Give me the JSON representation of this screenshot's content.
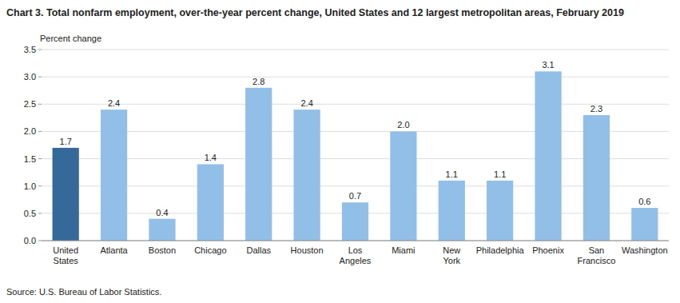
{
  "chart_data": {
    "type": "bar",
    "title": "Chart 3. Total nonfarm employment, over-the-year percent change, United States and 12 largest metropolitan areas, February 2019",
    "y_label": "Percent change",
    "source": "Source: U.S. Bureau of Labor Statistics.",
    "categories": [
      "United\nStates",
      "Atlanta",
      "Boston",
      "Chicago",
      "Dallas",
      "Houston",
      "Los\nAngeles",
      "Miami",
      "New\nYork",
      "Philadelphia",
      "Phoenix",
      "San\nFrancisco",
      "Washington"
    ],
    "values": [
      1.7,
      2.4,
      0.4,
      1.4,
      2.8,
      2.4,
      0.7,
      2.0,
      1.1,
      1.1,
      3.1,
      2.3,
      0.6
    ],
    "value_labels": [
      "1.7",
      "2.4",
      "0.4",
      "1.4",
      "2.8",
      "2.4",
      "0.7",
      "2.0",
      "1.1",
      "1.1",
      "3.1",
      "2.3",
      "0.6"
    ],
    "colors": [
      "#35699A",
      "#92BFE8",
      "#92BFE8",
      "#92BFE8",
      "#92BFE8",
      "#92BFE8",
      "#92BFE8",
      "#92BFE8",
      "#92BFE8",
      "#92BFE8",
      "#92BFE8",
      "#92BFE8",
      "#92BFE8"
    ],
    "ylim": [
      0,
      3.5
    ],
    "yticks": [
      {
        "value": 0,
        "label": "0.0"
      },
      0.5,
      {
        "value": 1,
        "label": "1.0"
      },
      1.5,
      {
        "value": 2,
        "label": "2.0"
      },
      2.5,
      {
        "value": 3,
        "label": "3.0"
      },
      3.5
    ],
    "grid": true,
    "data_labels": true
  }
}
